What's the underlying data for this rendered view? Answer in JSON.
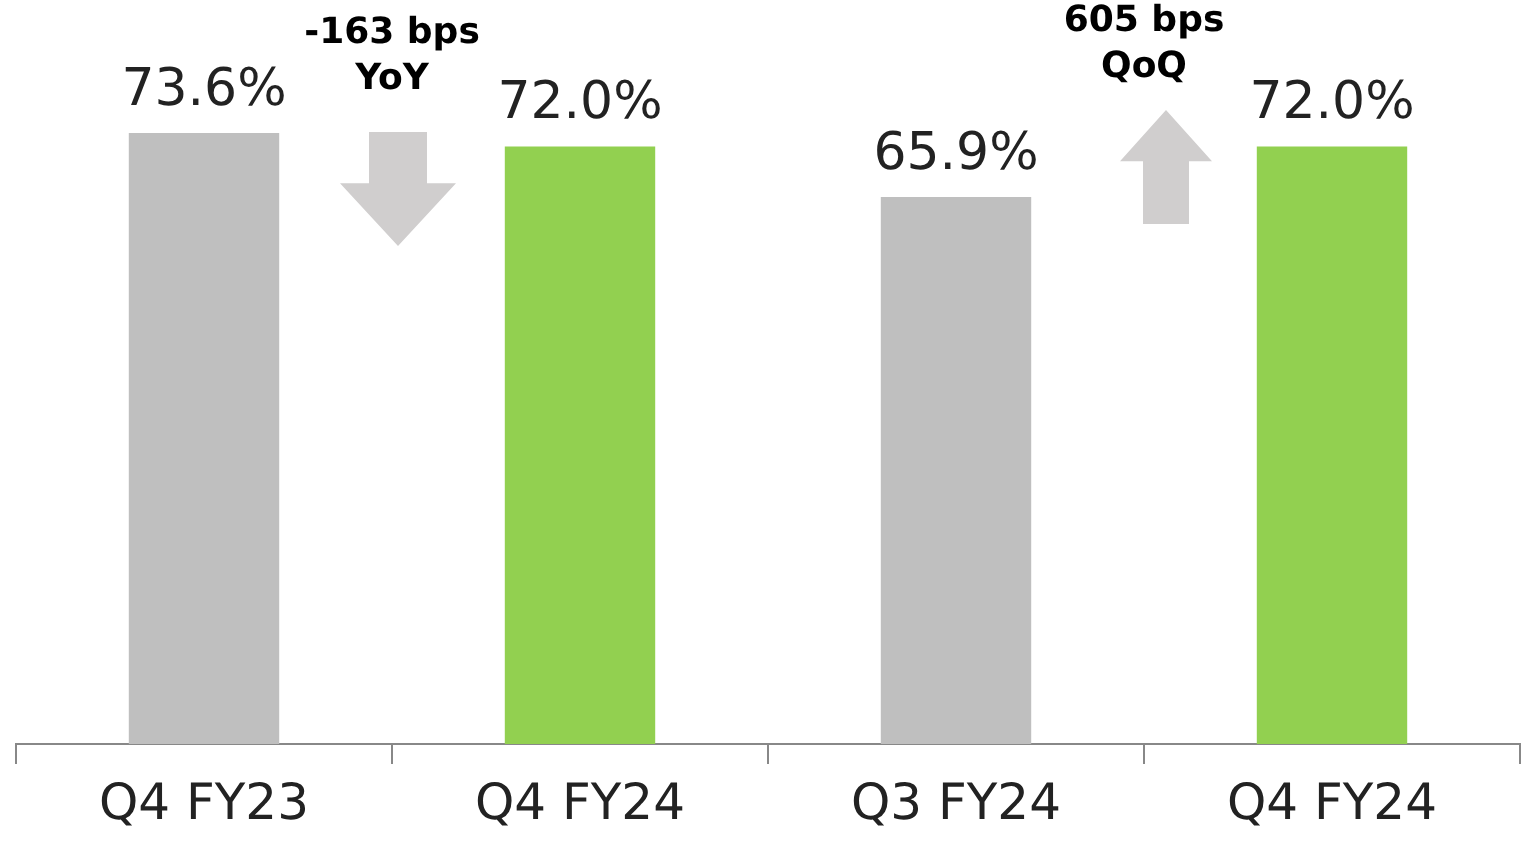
{
  "chart_data": {
    "type": "bar",
    "categories": [
      "Q4 FY23",
      "Q4 FY24",
      "Q3 FY24",
      "Q4 FY24"
    ],
    "values": [
      73.6,
      72.0,
      65.9,
      72.0
    ],
    "colors": [
      "#bfbfbf",
      "#92d050",
      "#bfbfbf",
      "#92d050"
    ],
    "value_labels": [
      "73.6%",
      "72.0%",
      "65.9%",
      "72.0%"
    ],
    "grid": false,
    "legend": false,
    "annotations": [
      "-163 bps YoY",
      "605 bps QoQ"
    ]
  }
}
